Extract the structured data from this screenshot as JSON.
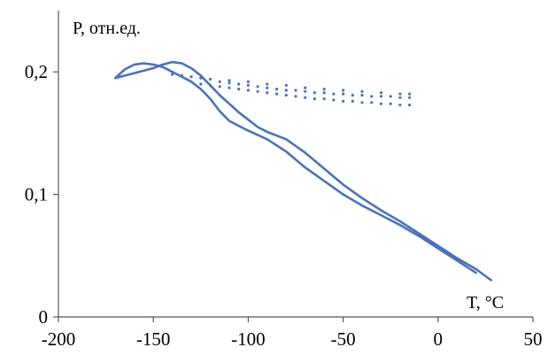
{
  "chart_data": {
    "type": "line",
    "title": "",
    "xlabel": "T, °C",
    "ylabel": "P, отн.ед.",
    "xlim": [
      -200,
      50
    ],
    "ylim": [
      0,
      0.25
    ],
    "x_ticks": [
      -200,
      -150,
      -100,
      -50,
      0,
      50
    ],
    "x_tick_labels": [
      "-200",
      "-150",
      "-100",
      "-50",
      "0",
      "50"
    ],
    "y_ticks": [
      0,
      0.1,
      0.2
    ],
    "y_tick_labels": [
      "0",
      "0,1",
      "0,2"
    ],
    "grid": false,
    "legend": "none",
    "color": "#4a72b8",
    "series": [
      {
        "style": "line",
        "x": [
          -170,
          -165,
          -160,
          -155,
          -150,
          -145,
          -140,
          -135,
          -130,
          -125,
          -120,
          -115,
          -110,
          -105,
          -100,
          -90,
          -80,
          -70,
          -60,
          -50,
          -40,
          -30,
          -20,
          -10,
          0,
          10,
          20
        ],
        "y": [
          0.195,
          0.202,
          0.206,
          0.207,
          0.206,
          0.204,
          0.2,
          0.196,
          0.192,
          0.186,
          0.178,
          0.168,
          0.16,
          0.156,
          0.152,
          0.145,
          0.135,
          0.122,
          0.111,
          0.1,
          0.091,
          0.083,
          0.075,
          0.066,
          0.056,
          0.046,
          0.036
        ]
      },
      {
        "style": "line",
        "x": [
          -170,
          -160,
          -150,
          -145,
          -140,
          -135,
          -130,
          -125,
          -120,
          -115,
          -110,
          -105,
          -100,
          -95,
          -90,
          -85,
          -80,
          -70,
          -60,
          -50,
          -40,
          -30,
          -20,
          -10,
          0,
          10,
          20,
          28
        ],
        "y": [
          0.195,
          0.199,
          0.203,
          0.206,
          0.208,
          0.207,
          0.203,
          0.197,
          0.189,
          0.181,
          0.174,
          0.167,
          0.161,
          0.155,
          0.151,
          0.148,
          0.145,
          0.134,
          0.121,
          0.108,
          0.097,
          0.087,
          0.078,
          0.068,
          0.058,
          0.048,
          0.039,
          0.03
        ]
      },
      {
        "style": "scatter",
        "x": [
          -140,
          -135,
          -130,
          -125,
          -120,
          -115,
          -110,
          -105,
          -100,
          -95,
          -90,
          -85,
          -80,
          -75,
          -70,
          -65,
          -60,
          -55,
          -50,
          -45,
          -40,
          -35,
          -30,
          -25,
          -20,
          -15
        ],
        "y": [
          0.198,
          0.197,
          0.196,
          0.195,
          0.194,
          0.192,
          0.191,
          0.19,
          0.189,
          0.188,
          0.187,
          0.186,
          0.185,
          0.185,
          0.184,
          0.183,
          0.183,
          0.182,
          0.182,
          0.181,
          0.181,
          0.18,
          0.18,
          0.18,
          0.179,
          0.179
        ]
      },
      {
        "style": "scatter",
        "x": [
          -125,
          -120,
          -115,
          -110,
          -105,
          -100,
          -95,
          -90,
          -85,
          -80,
          -75,
          -70,
          -65,
          -60,
          -55,
          -50,
          -45,
          -40,
          -35,
          -30,
          -25,
          -20,
          -15
        ],
        "y": [
          0.19,
          0.189,
          0.188,
          0.187,
          0.186,
          0.185,
          0.184,
          0.183,
          0.182,
          0.181,
          0.18,
          0.179,
          0.178,
          0.178,
          0.177,
          0.176,
          0.176,
          0.175,
          0.175,
          0.174,
          0.174,
          0.173,
          0.173
        ]
      },
      {
        "style": "scatter",
        "x": [
          -110,
          -100,
          -90,
          -80,
          -70,
          -60,
          -50,
          -40,
          -30,
          -20,
          -15
        ],
        "y": [
          0.193,
          0.192,
          0.19,
          0.189,
          0.187,
          0.186,
          0.185,
          0.184,
          0.183,
          0.182,
          0.182
        ]
      }
    ]
  }
}
